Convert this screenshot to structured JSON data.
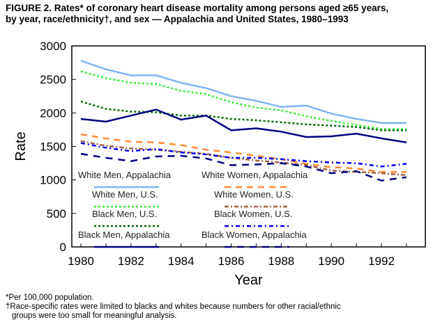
{
  "title_line1": "FIGURE 2. Rates* of coronary heart disease mortality among persons aged ≥65 years,",
  "title_line2": "by year, race/ethnicity†, and sex — Appalachia and United States, 1980–1993",
  "footnotes": [
    "*Per 100,000 population.",
    "†Race-specific rates were limited to blacks and whites because numbers for other racial/ethnic",
    "groups were too small for meaningful analysis."
  ],
  "chart_data": {
    "type": "line",
    "title": "Rates of coronary heart disease mortality among persons aged ≥65 years, 1980–1993",
    "xlabel": "Year",
    "ylabel": "Rate",
    "xlim": [
      1980,
      1993
    ],
    "ylim": [
      0,
      3000
    ],
    "xticks": [
      "1980",
      "1982",
      "1984",
      "1986",
      "1988",
      "1990",
      "1992"
    ],
    "yticks": [
      "0",
      "500",
      "1000",
      "1500",
      "2000",
      "2500",
      "3000"
    ],
    "legend_placement": "inside-bottom",
    "x": [
      1980,
      1981,
      1982,
      1983,
      1984,
      1985,
      1986,
      1987,
      1988,
      1989,
      1990,
      1991,
      1992,
      1993
    ],
    "series": [
      {
        "name": "White Men, Appalachia",
        "color": "#7fb5f5",
        "dash": "",
        "values": [
          2780,
          2650,
          2560,
          2560,
          2450,
          2370,
          2250,
          2180,
          2090,
          2110,
          1990,
          1910,
          1850,
          1850
        ]
      },
      {
        "name": "White Men, U.S.",
        "color": "#33ee33",
        "dash": "3,3",
        "values": [
          2620,
          2520,
          2450,
          2430,
          2330,
          2280,
          2160,
          2080,
          2040,
          1950,
          1880,
          1820,
          1760,
          1760
        ]
      },
      {
        "name": "Black Men, U.S.",
        "color": "#006600",
        "dash": "3,3",
        "values": [
          2170,
          2060,
          2020,
          2010,
          1960,
          1960,
          1910,
          1890,
          1860,
          1830,
          1810,
          1790,
          1740,
          1740
        ]
      },
      {
        "name": "Black Men, Appalachia",
        "color": "#000080",
        "dash": "",
        "values": [
          1910,
          1870,
          1960,
          2050,
          1900,
          1960,
          1740,
          1770,
          1720,
          1640,
          1650,
          1690,
          1620,
          1560
        ]
      },
      {
        "name": "White Women, Appalachia",
        "color": "#ff8833",
        "dash": "9,7",
        "values": [
          1680,
          1620,
          1570,
          1560,
          1520,
          1450,
          1410,
          1360,
          1310,
          1240,
          1190,
          1170,
          1120,
          1120
        ]
      },
      {
        "name": "White Women, U.S.",
        "color": "#a06040",
        "dash": "6,3,2,3",
        "values": [
          1580,
          1510,
          1470,
          1450,
          1420,
          1390,
          1330,
          1290,
          1260,
          1220,
          1140,
          1120,
          1100,
          1070
        ]
      },
      {
        "name": "Black Women, U.S.",
        "color": "#0000ff",
        "dash": "6,4,2,4",
        "values": [
          1550,
          1480,
          1430,
          1460,
          1410,
          1380,
          1330,
          1330,
          1310,
          1280,
          1260,
          1250,
          1200,
          1240
        ]
      },
      {
        "name": "Black Women, Appalachia",
        "color": "#000080",
        "dash": "10,8",
        "values": [
          1390,
          1330,
          1280,
          1350,
          1360,
          1320,
          1220,
          1230,
          1250,
          1200,
          1100,
          1130,
          990,
          1040
        ]
      }
    ]
  }
}
